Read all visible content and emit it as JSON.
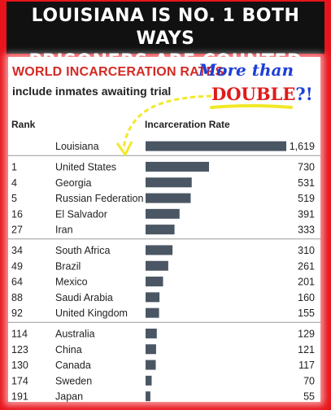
{
  "banner": {
    "line1": "LOUISIANA IS NO. 1 BOTH WAYS",
    "line2": "PRISONERS ARE COUNTED"
  },
  "annotation": {
    "line1": "More than",
    "line2_main": "DOUBLE",
    "line2_punct": "?!"
  },
  "colors": {
    "frame": "#e8141c",
    "banner_bg": "#111111",
    "title": "#d42a24",
    "bar": "#4a5663",
    "annotation_blue": "#1d3fd6",
    "annotation_red": "#e01a1a",
    "highlight_yellow": "#f2e82a"
  },
  "chart_data": {
    "type": "bar",
    "orientation": "horizontal",
    "title": "WORLD INCARCERATION RATES",
    "subtitle": "include inmates awaiting trial",
    "column_headers": {
      "rank": "Rank",
      "rate": "Incarceration Rate"
    },
    "xlim": [
      0,
      1619
    ],
    "grid": false,
    "legend": "none",
    "groups": [
      [
        {
          "rank": "",
          "country": "Louisiana",
          "value": 1619,
          "value_label": "1,619"
        }
      ],
      [
        {
          "rank": "1",
          "country": "United States",
          "value": 730,
          "value_label": "730"
        },
        {
          "rank": "4",
          "country": "Georgia",
          "value": 531,
          "value_label": "531"
        },
        {
          "rank": "5",
          "country": "Russian Federation",
          "value": 519,
          "value_label": "519"
        },
        {
          "rank": "16",
          "country": "El Salvador",
          "value": 391,
          "value_label": "391"
        },
        {
          "rank": "27",
          "country": "Iran",
          "value": 333,
          "value_label": "333"
        }
      ],
      [
        {
          "rank": "34",
          "country": "South Africa",
          "value": 310,
          "value_label": "310"
        },
        {
          "rank": "49",
          "country": "Brazil",
          "value": 261,
          "value_label": "261"
        },
        {
          "rank": "64",
          "country": "Mexico",
          "value": 201,
          "value_label": "201"
        },
        {
          "rank": "88",
          "country": "Saudi Arabia",
          "value": 160,
          "value_label": "160"
        },
        {
          "rank": "92",
          "country": "United Kingdom",
          "value": 155,
          "value_label": "155"
        }
      ],
      [
        {
          "rank": "114",
          "country": "Australia",
          "value": 129,
          "value_label": "129"
        },
        {
          "rank": "123",
          "country": "China",
          "value": 121,
          "value_label": "121"
        },
        {
          "rank": "130",
          "country": "Canada",
          "value": 117,
          "value_label": "117"
        },
        {
          "rank": "174",
          "country": "Sweden",
          "value": 70,
          "value_label": "70"
        },
        {
          "rank": "191",
          "country": "Japan",
          "value": 55,
          "value_label": "55"
        }
      ]
    ]
  }
}
